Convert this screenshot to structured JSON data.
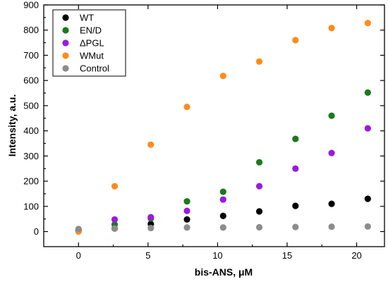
{
  "chart_data": {
    "type": "scatter",
    "xlabel": "bis-ANS, μM",
    "ylabel": "Intensity,  a.u.",
    "xlim": [
      -2.5,
      22
    ],
    "ylim": [
      -60,
      900
    ],
    "xticks": [
      "0",
      "5",
      "10",
      "15",
      "20"
    ],
    "yticks": [
      "0",
      "100",
      "200",
      "300",
      "400",
      "500",
      "600",
      "700",
      "800",
      "900"
    ],
    "grid": false,
    "legend_position": "top-left",
    "x": [
      0,
      2.6,
      5.2,
      7.8,
      10.4,
      13,
      15.6,
      18.2,
      20.8
    ],
    "series": [
      {
        "name": "WT",
        "color": "#000000",
        "values": [
          5,
          12,
          30,
          48,
          62,
          80,
          102,
          110,
          130
        ]
      },
      {
        "name": "EN/D",
        "color": "#1a7a1a",
        "values": [
          3,
          28,
          52,
          120,
          158,
          275,
          368,
          460,
          552
        ]
      },
      {
        "name": "ΔPGL",
        "color": "#9b19e0",
        "values": [
          4,
          48,
          57,
          82,
          127,
          180,
          250,
          312,
          410
        ]
      },
      {
        "name": "WMut",
        "color": "#ff8c1a",
        "values": [
          0,
          180,
          345,
          495,
          618,
          675,
          760,
          808,
          828
        ]
      },
      {
        "name": "Control",
        "color": "#8c8c8c",
        "values": [
          10,
          12,
          14,
          16,
          16,
          17,
          18,
          19,
          20
        ]
      }
    ]
  }
}
